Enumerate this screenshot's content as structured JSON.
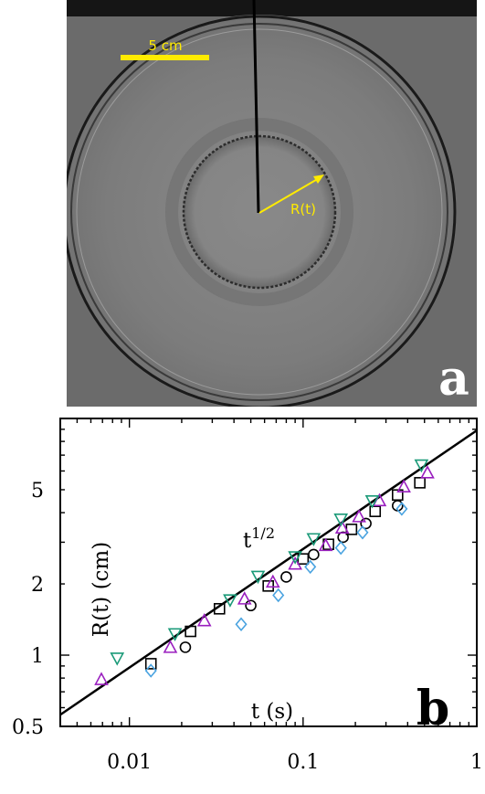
{
  "panel_a": {
    "label": "a",
    "scale_bar_label": "5 cm",
    "radius_label": "R(t)",
    "colors": {
      "annotation": "#ffeb00",
      "label": "#ffffff",
      "background": "#6d6d6d"
    }
  },
  "panel_b": {
    "label": "b",
    "fit_label": "t",
    "fit_exponent": "1/2"
  },
  "chart_data": {
    "type": "scatter",
    "xlabel": "t (s)",
    "ylabel": "R(t) (cm)",
    "xscale": "log",
    "yscale": "log",
    "xlim": [
      0.004,
      1
    ],
    "ylim": [
      0.5,
      10
    ],
    "xticks": [
      {
        "value": 0.01,
        "label": "0.01"
      },
      {
        "value": 0.1,
        "label": "0.1"
      },
      {
        "value": 1,
        "label": "1"
      }
    ],
    "yticks": [
      {
        "value": 0.5,
        "label": "0.5"
      },
      {
        "value": 1,
        "label": "1"
      },
      {
        "value": 2,
        "label": "2"
      },
      {
        "value": 5,
        "label": "5"
      }
    ],
    "fit_line": {
      "label": "t^1/2",
      "exponent": 0.5,
      "x": [
        0.004,
        1
      ],
      "y": [
        0.56,
        8.9
      ],
      "color": "#000000"
    },
    "series": [
      {
        "marker": "square",
        "color": "#000000",
        "x": [
          0.0133,
          0.0225,
          0.033,
          0.063,
          0.1,
          0.14,
          0.19,
          0.26,
          0.35,
          0.47
        ],
        "y": [
          0.92,
          1.26,
          1.57,
          1.96,
          2.55,
          2.94,
          3.4,
          4.05,
          4.75,
          5.35
        ]
      },
      {
        "marker": "circle",
        "color": "#000000",
        "x": [
          0.021,
          0.05,
          0.08,
          0.115,
          0.17,
          0.23,
          0.35
        ],
        "y": [
          1.08,
          1.62,
          2.14,
          2.66,
          3.15,
          3.6,
          4.28
        ]
      },
      {
        "marker": "triangle-up",
        "color": "#9a1fbf",
        "x": [
          0.0069,
          0.0172,
          0.027,
          0.046,
          0.067,
          0.09,
          0.135,
          0.168,
          0.21,
          0.275,
          0.38,
          0.52
        ],
        "y": [
          0.79,
          1.08,
          1.4,
          1.73,
          2.04,
          2.43,
          2.91,
          3.45,
          3.85,
          4.5,
          5.15,
          5.9
        ]
      },
      {
        "marker": "triangle-down",
        "color": "#1a9a78",
        "x": [
          0.0085,
          0.0183,
          0.038,
          0.055,
          0.09,
          0.115,
          0.165,
          0.25,
          0.48
        ],
        "y": [
          0.97,
          1.23,
          1.71,
          2.15,
          2.6,
          3.1,
          3.75,
          4.48,
          6.35
        ]
      },
      {
        "marker": "diamond",
        "color": "#4aa3e0",
        "x": [
          0.0133,
          0.044,
          0.072,
          0.11,
          0.165,
          0.22,
          0.37
        ],
        "y": [
          0.86,
          1.35,
          1.79,
          2.36,
          2.84,
          3.3,
          4.15
        ]
      }
    ]
  }
}
